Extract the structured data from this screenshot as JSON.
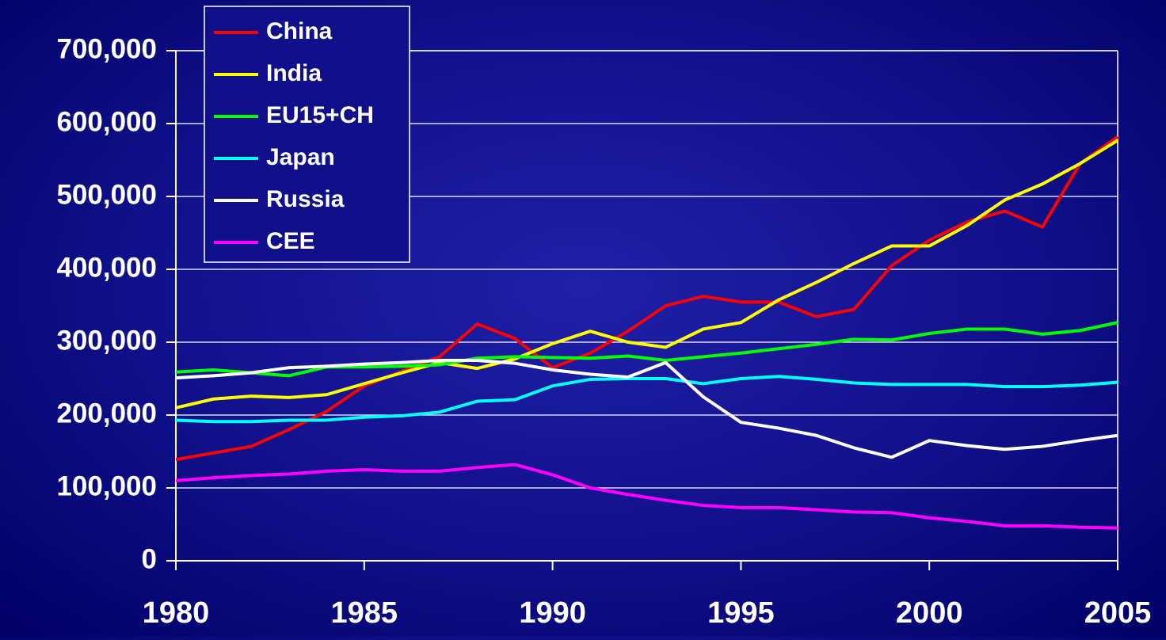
{
  "chart_data": {
    "type": "line",
    "x": [
      1980,
      1981,
      1982,
      1983,
      1984,
      1985,
      1986,
      1987,
      1988,
      1989,
      1990,
      1991,
      1992,
      1993,
      1994,
      1995,
      1996,
      1997,
      1998,
      1999,
      2000,
      2001,
      2002,
      2003,
      2004,
      2005
    ],
    "xlim": [
      1980,
      2005
    ],
    "xticks": [
      1980,
      1985,
      1990,
      1995,
      2000,
      2005
    ],
    "ylim": [
      0,
      700000
    ],
    "yticks": [
      0,
      {
        "value": 100000,
        "label": "100,000"
      },
      {
        "value": 200000,
        "label": "200,000"
      },
      {
        "value": 300000,
        "label": "300,000"
      },
      {
        "value": 400000,
        "label": "400,000"
      },
      {
        "value": 500000,
        "label": "500,000"
      },
      {
        "value": 600000,
        "label": "600,000"
      },
      {
        "value": 700000,
        "label": "700,000"
      }
    ],
    "grid": true,
    "legend": "top-left",
    "series": [
      {
        "name": "China",
        "color": "#ff0000",
        "values": [
          139000,
          148000,
          157000,
          180000,
          205000,
          240000,
          260000,
          280000,
          325000,
          305000,
          265000,
          285000,
          315000,
          350000,
          363000,
          355000,
          355000,
          335000,
          345000,
          405000,
          440000,
          465000,
          480000,
          458000,
          545000,
          582000
        ]
      },
      {
        "name": "India",
        "color": "#ffff00",
        "values": [
          210000,
          222000,
          226000,
          224000,
          228000,
          243000,
          258000,
          272000,
          264000,
          277000,
          298000,
          315000,
          300000,
          293000,
          318000,
          327000,
          358000,
          382000,
          408000,
          432000,
          432000,
          460000,
          495000,
          517000,
          545000,
          577000
        ]
      },
      {
        "name": "EU15+CH",
        "color": "#00ff00",
        "values": [
          259000,
          262000,
          258000,
          254000,
          266000,
          266000,
          267000,
          269000,
          278000,
          280000,
          279000,
          278000,
          281000,
          275000,
          280000,
          285000,
          291000,
          297000,
          304000,
          303000,
          312000,
          318000,
          318000,
          311000,
          316000,
          327000
        ]
      },
      {
        "name": "Japan",
        "color": "#00ffff",
        "values": [
          193000,
          191000,
          191000,
          193000,
          193000,
          197000,
          199000,
          204000,
          219000,
          221000,
          240000,
          249000,
          250000,
          250000,
          243000,
          250000,
          253000,
          249000,
          244000,
          242000,
          242000,
          242000,
          239000,
          239000,
          241000,
          245000
        ]
      },
      {
        "name": "Russia",
        "color": "#ffffff",
        "values": [
          251000,
          254000,
          258000,
          265000,
          267000,
          270000,
          272000,
          275000,
          275000,
          271000,
          262000,
          256000,
          252000,
          272000,
          225000,
          190000,
          182000,
          172000,
          155000,
          142000,
          165000,
          158000,
          153000,
          157000,
          165000,
          172000
        ]
      },
      {
        "name": "CEE",
        "color": "#ff00ff",
        "values": [
          110000,
          114000,
          117000,
          119000,
          123000,
          125000,
          123000,
          123000,
          128000,
          132000,
          118000,
          100000,
          91000,
          83000,
          76000,
          73000,
          73000,
          70000,
          67000,
          66000,
          59000,
          54000,
          48000,
          48000,
          46000,
          45000
        ]
      }
    ]
  }
}
